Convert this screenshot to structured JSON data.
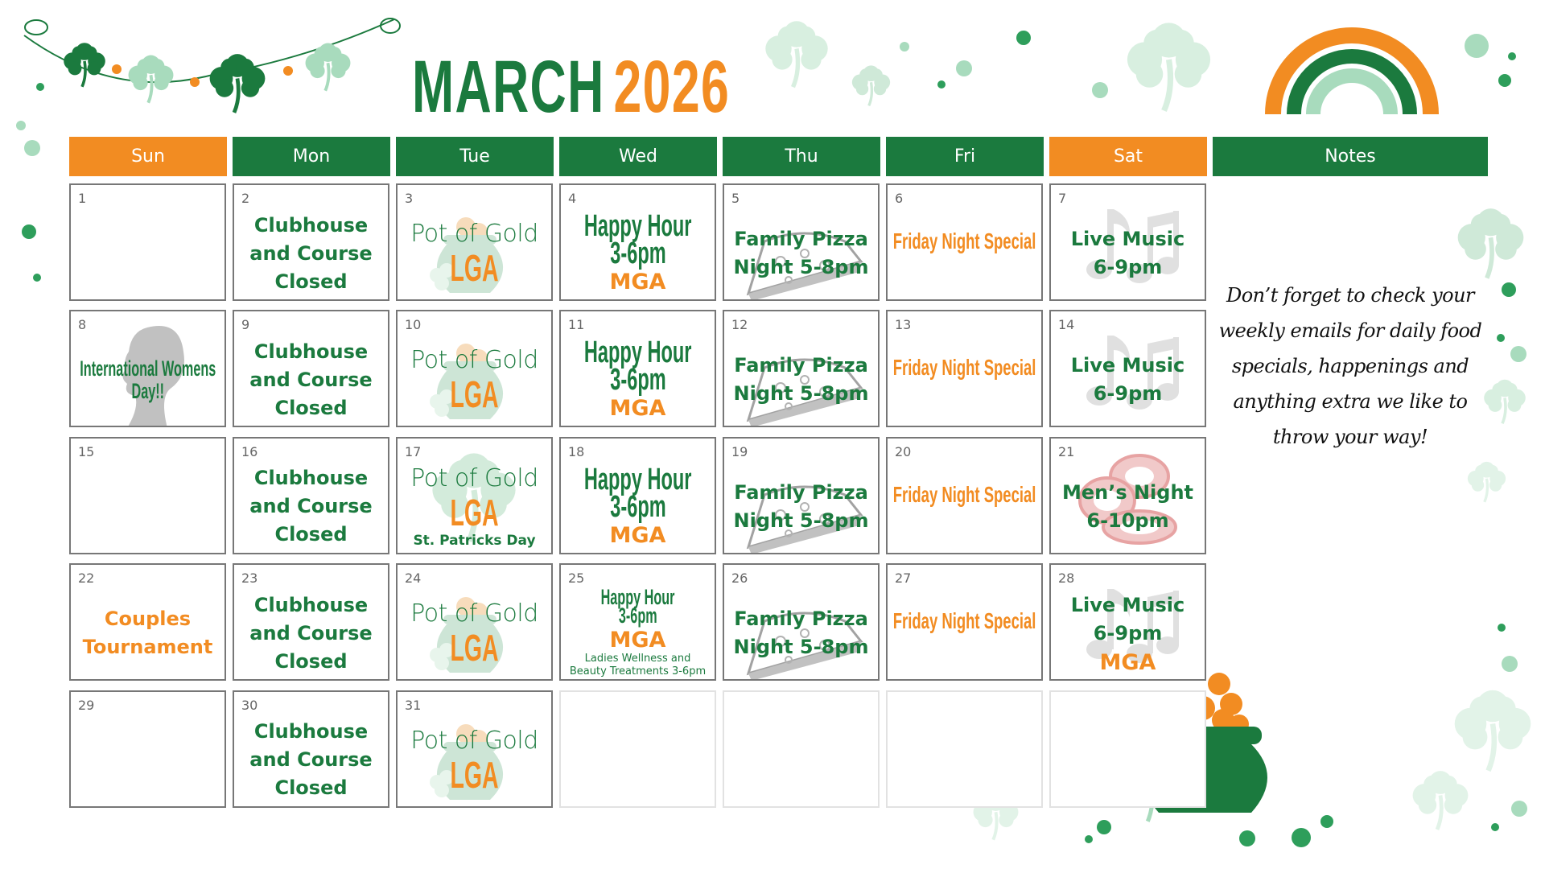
{
  "title": {
    "month": "MARCH",
    "year": "2026"
  },
  "colors": {
    "green": "#1b7a3e",
    "orange": "#f28c22",
    "light_green": "#a8dbbd",
    "cell_border": "#777777"
  },
  "headers": [
    {
      "label": "Sun",
      "color": "#f28c22"
    },
    {
      "label": "Mon",
      "color": "#1b7a3e"
    },
    {
      "label": "Tue",
      "color": "#1b7a3e"
    },
    {
      "label": "Wed",
      "color": "#1b7a3e"
    },
    {
      "label": "Thu",
      "color": "#1b7a3e"
    },
    {
      "label": "Fri",
      "color": "#1b7a3e"
    },
    {
      "label": "Sat",
      "color": "#f28c22"
    },
    {
      "label": "Notes",
      "color": "#1b7a3e"
    }
  ],
  "notes": "Don’t forget to check your weekly emails for daily food specials, happenings and anything extra we like to throw your way!",
  "weeks": [
    [
      {
        "day": "1",
        "lines": []
      },
      {
        "day": "2",
        "lines": [
          {
            "t": "Clubhouse",
            "s": "bold"
          },
          {
            "t": "and Course",
            "s": "bold"
          },
          {
            "t": "Closed",
            "s": "bold"
          }
        ]
      },
      {
        "day": "3",
        "icon": "pot-of-gold",
        "lines": [
          {
            "t": "Pot of Gold",
            "s": "light"
          },
          {
            "t": "LGA",
            "s": "lga"
          }
        ]
      },
      {
        "day": "4",
        "lines": [
          {
            "t": "Happy Hour",
            "s": "condensed"
          },
          {
            "t": "3-6pm",
            "s": "condensed"
          },
          {
            "t": "MGA",
            "s": "orange-bold"
          }
        ]
      },
      {
        "day": "5",
        "icon": "pizza",
        "lines": [
          {
            "t": "Family Pizza",
            "s": "bold"
          },
          {
            "t": "Night 5-8pm",
            "s": "bold"
          }
        ]
      },
      {
        "day": "6",
        "lines": [
          {
            "t": "Friday Night Special",
            "s": "orange-condensed"
          }
        ]
      },
      {
        "day": "7",
        "icon": "music-notes",
        "lines": [
          {
            "t": "Live Music",
            "s": "bold"
          },
          {
            "t": "6-9pm",
            "s": "bold"
          }
        ]
      }
    ],
    [
      {
        "day": "8",
        "icon": "woman-silhouette",
        "lines": [
          {
            "t": "International Womens",
            "s": "womens"
          },
          {
            "t": "Day!!",
            "s": "womens"
          }
        ]
      },
      {
        "day": "9",
        "lines": [
          {
            "t": "Clubhouse",
            "s": "bold"
          },
          {
            "t": "and Course",
            "s": "bold"
          },
          {
            "t": "Closed",
            "s": "bold"
          }
        ]
      },
      {
        "day": "10",
        "icon": "pot-of-gold",
        "lines": [
          {
            "t": "Pot of Gold",
            "s": "light"
          },
          {
            "t": "LGA",
            "s": "lga"
          }
        ]
      },
      {
        "day": "11",
        "lines": [
          {
            "t": "Happy Hour",
            "s": "condensed"
          },
          {
            "t": "3-6pm",
            "s": "condensed"
          },
          {
            "t": "MGA",
            "s": "orange-bold"
          }
        ]
      },
      {
        "day": "12",
        "icon": "pizza",
        "lines": [
          {
            "t": "Family Pizza",
            "s": "bold"
          },
          {
            "t": "Night 5-8pm",
            "s": "bold"
          }
        ]
      },
      {
        "day": "13",
        "lines": [
          {
            "t": "Friday Night Special",
            "s": "orange-condensed"
          }
        ]
      },
      {
        "day": "14",
        "icon": "music-notes",
        "lines": [
          {
            "t": "Live Music",
            "s": "bold"
          },
          {
            "t": "6-9pm",
            "s": "bold"
          }
        ]
      }
    ],
    [
      {
        "day": "15",
        "lines": []
      },
      {
        "day": "16",
        "lines": [
          {
            "t": "Clubhouse",
            "s": "bold"
          },
          {
            "t": "and Course",
            "s": "bold"
          },
          {
            "t": "Closed",
            "s": "bold"
          }
        ]
      },
      {
        "day": "17",
        "icon": "shamrock",
        "lines": [
          {
            "t": "Pot of Gold",
            "s": "light"
          },
          {
            "t": "LGA",
            "s": "lga"
          },
          {
            "t": "St. Patricks Day",
            "s": "small-bold"
          }
        ]
      },
      {
        "day": "18",
        "lines": [
          {
            "t": "Happy Hour",
            "s": "condensed"
          },
          {
            "t": "3-6pm",
            "s": "condensed"
          },
          {
            "t": "MGA",
            "s": "orange-bold"
          }
        ]
      },
      {
        "day": "19",
        "icon": "pizza",
        "lines": [
          {
            "t": "Family Pizza",
            "s": "bold"
          },
          {
            "t": "Night 5-8pm",
            "s": "bold"
          }
        ]
      },
      {
        "day": "20",
        "lines": [
          {
            "t": "Friday Night Special",
            "s": "orange-condensed"
          }
        ]
      },
      {
        "day": "21",
        "icon": "poker-chips",
        "lines": [
          {
            "t": "Men’s Night",
            "s": "bold"
          },
          {
            "t": "6-10pm",
            "s": "bold"
          }
        ]
      }
    ],
    [
      {
        "day": "22",
        "lines": [
          {
            "t": "Couples",
            "s": "orange-text"
          },
          {
            "t": "Tournament",
            "s": "orange-text"
          }
        ]
      },
      {
        "day": "23",
        "lines": [
          {
            "t": "Clubhouse",
            "s": "bold"
          },
          {
            "t": "and Course",
            "s": "bold"
          },
          {
            "t": "Closed",
            "s": "bold"
          }
        ]
      },
      {
        "day": "24",
        "icon": "pot-of-gold",
        "lines": [
          {
            "t": "Pot of Gold",
            "s": "light"
          },
          {
            "t": "LGA",
            "s": "lga"
          }
        ]
      },
      {
        "day": "25",
        "lines": [
          {
            "t": "Happy Hour",
            "s": "condensed-sm"
          },
          {
            "t": "3-6pm",
            "s": "condensed-sm"
          },
          {
            "t": "MGA",
            "s": "orange-bold"
          },
          {
            "t": "Ladies Wellness and",
            "s": "small"
          },
          {
            "t": "Beauty Treatments 3-6pm",
            "s": "small"
          }
        ]
      },
      {
        "day": "26",
        "icon": "pizza",
        "lines": [
          {
            "t": "Family Pizza",
            "s": "bold"
          },
          {
            "t": "Night 5-8pm",
            "s": "bold"
          }
        ]
      },
      {
        "day": "27",
        "lines": [
          {
            "t": "Friday Night Special",
            "s": "orange-condensed"
          }
        ]
      },
      {
        "day": "28",
        "icon": "music-notes",
        "lines": [
          {
            "t": "Live Music",
            "s": "bold"
          },
          {
            "t": "6-9pm",
            "s": "bold"
          },
          {
            "t": "MGA",
            "s": "orange-bold"
          }
        ]
      }
    ],
    [
      {
        "day": "29",
        "lines": []
      },
      {
        "day": "30",
        "lines": [
          {
            "t": "Clubhouse",
            "s": "bold"
          },
          {
            "t": "and Course",
            "s": "bold"
          },
          {
            "t": "Closed",
            "s": "bold"
          }
        ]
      },
      {
        "day": "31",
        "icon": "pot-of-gold",
        "lines": [
          {
            "t": "Pot of Gold",
            "s": "light"
          },
          {
            "t": "LGA",
            "s": "lga"
          }
        ]
      },
      {
        "day": "",
        "empty": true,
        "lines": []
      },
      {
        "day": "",
        "empty": true,
        "lines": []
      },
      {
        "day": "",
        "empty": true,
        "lines": []
      },
      {
        "day": "",
        "empty": true,
        "lines": []
      }
    ]
  ]
}
